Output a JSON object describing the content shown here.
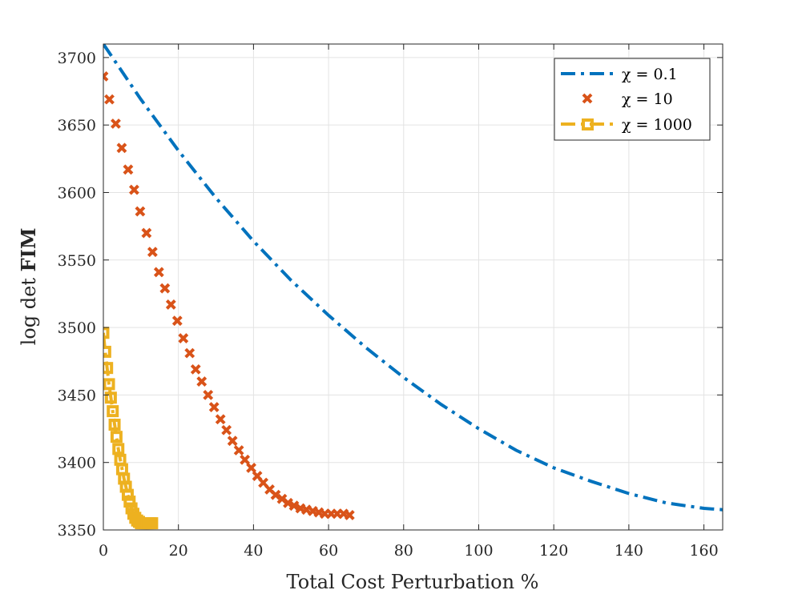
{
  "chart_data": {
    "type": "line",
    "title": "",
    "xlabel": "Total Cost Perturbation %",
    "ylabel": "log det FIM",
    "ylabel_parts": {
      "prefix": "log det ",
      "bold": "FIM"
    },
    "xlim": [
      0,
      165
    ],
    "ylim": [
      3350,
      3710
    ],
    "xticks": [
      0,
      20,
      40,
      60,
      80,
      100,
      120,
      140,
      160
    ],
    "yticks": [
      3350,
      3400,
      3450,
      3500,
      3550,
      3600,
      3650,
      3700
    ],
    "grid": true,
    "legend_position": "top-right",
    "series": [
      {
        "name": "χ = 0.1",
        "legend_label": "χ = 0.1",
        "style": "dash-dot",
        "color": "#0072BD",
        "x": [
          0,
          10,
          20,
          30,
          40,
          50,
          60,
          70,
          80,
          90,
          100,
          110,
          120,
          130,
          140,
          150,
          160,
          165
        ],
        "y": [
          3710,
          3669,
          3631,
          3596,
          3564,
          3535,
          3509,
          3485,
          3463,
          3443,
          3425,
          3409,
          3396,
          3386,
          3377,
          3370,
          3366,
          3365
        ]
      },
      {
        "name": "χ = 10",
        "legend_label": "χ = 10",
        "style": "x-markers",
        "color": "#D95319",
        "x": [
          0,
          1.6,
          3.3,
          4.9,
          6.6,
          8.2,
          9.8,
          11.5,
          13.1,
          14.8,
          16.4,
          18.0,
          19.7,
          21.3,
          23.0,
          24.6,
          26.2,
          27.9,
          29.5,
          31.2,
          32.8,
          34.4,
          36.1,
          37.7,
          39.4,
          41.0,
          42.6,
          44.3,
          45.9,
          47.6,
          49.2,
          50.8,
          52.5,
          54.1,
          55.8,
          57.4,
          59.0,
          60.7,
          62.3,
          64.0,
          65.6
        ],
        "y": [
          3686,
          3669,
          3651,
          3633,
          3617,
          3602,
          3586,
          3570,
          3556,
          3541,
          3529,
          3517,
          3505,
          3492,
          3481,
          3469,
          3460,
          3450,
          3441,
          3432,
          3424,
          3416,
          3409,
          3402,
          3396,
          3390,
          3385,
          3380,
          3376,
          3373,
          3370,
          3368,
          3366,
          3365,
          3364,
          3363,
          3362,
          3362,
          3362,
          3362,
          3361
        ]
      },
      {
        "name": "χ = 1000",
        "legend_label": "χ = 1000",
        "style": "dash-dot-square",
        "color": "#EDB120",
        "x": [
          0,
          0.5,
          1,
          1.5,
          2,
          2.5,
          3,
          3.5,
          4,
          4.5,
          5,
          5.5,
          6,
          6.5,
          7,
          7.5,
          8,
          8.5,
          9,
          9.5,
          10,
          10.5,
          11,
          11.5,
          12,
          12.5,
          13
        ],
        "y": [
          3496,
          3482,
          3470,
          3458,
          3448,
          3438,
          3428,
          3419,
          3410,
          3402,
          3395,
          3388,
          3382,
          3376,
          3371,
          3366,
          3362,
          3359,
          3357,
          3356,
          3355,
          3355,
          3355,
          3355,
          3355,
          3355,
          3355
        ]
      }
    ]
  }
}
